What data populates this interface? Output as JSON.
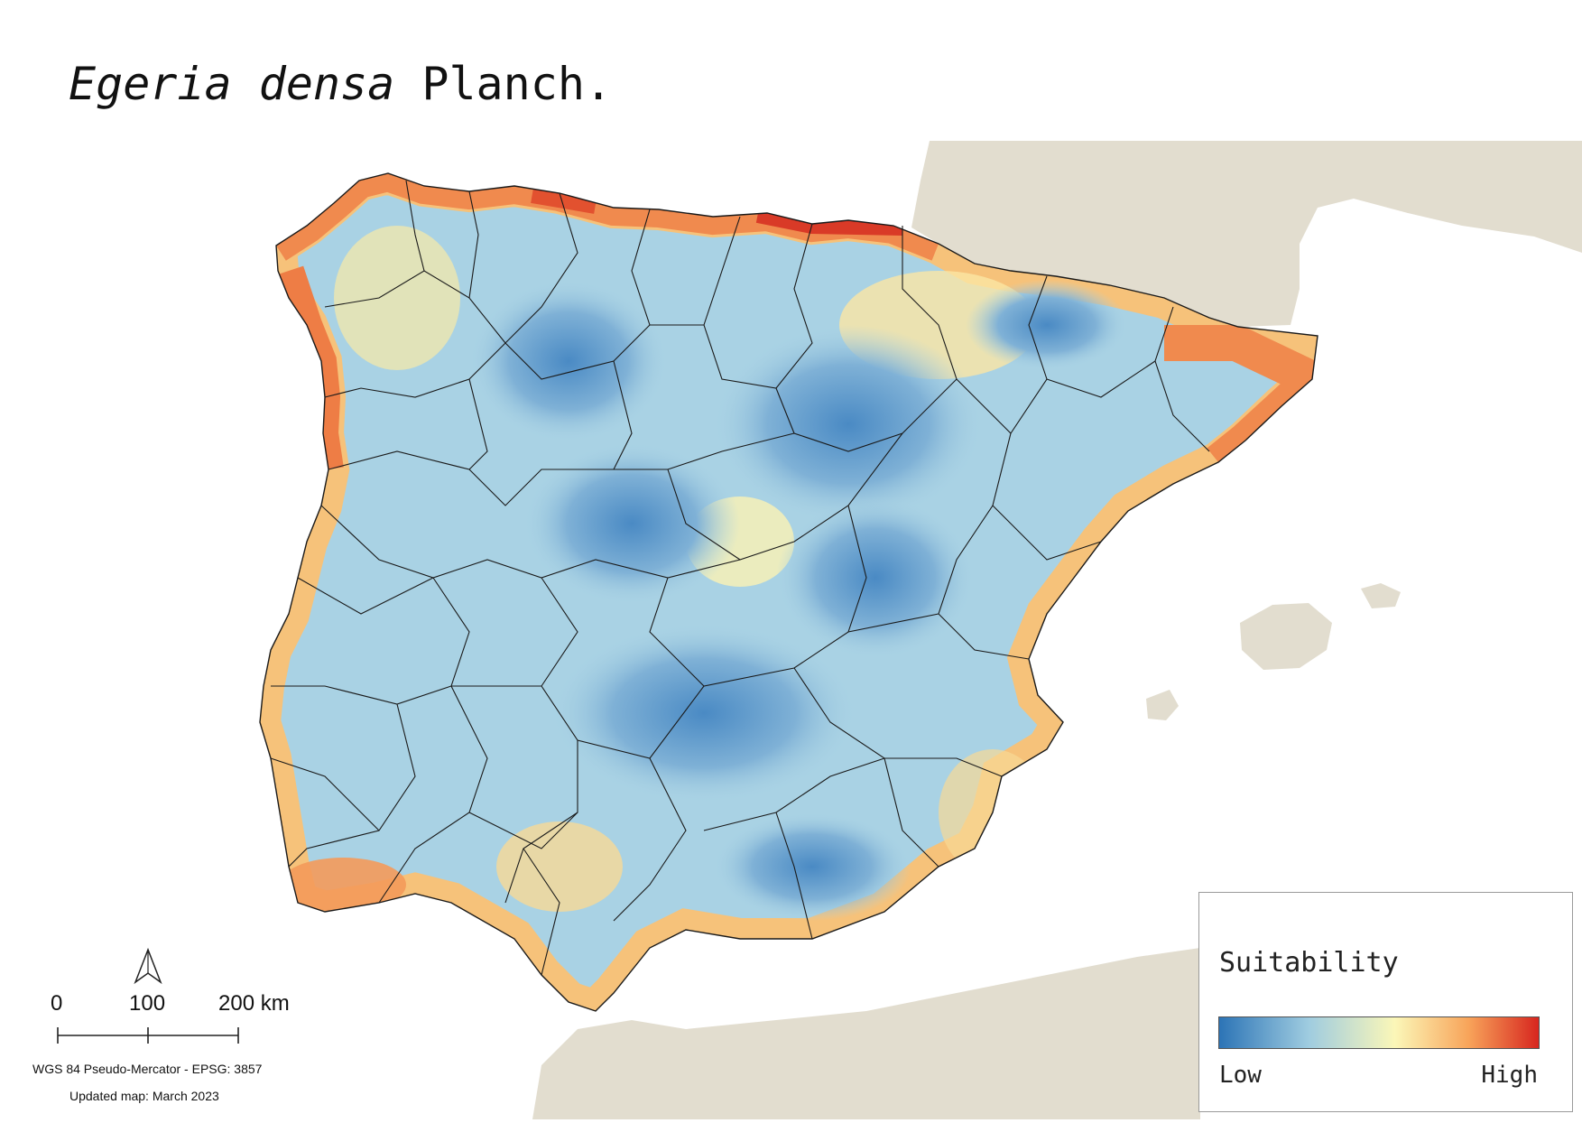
{
  "title": {
    "species_italic": "Egeria densa",
    "author": "Planch."
  },
  "legend": {
    "title": "Suitability",
    "low_label": "Low",
    "high_label": "High",
    "ramp_colors": [
      "#2c74b6",
      "#9fcce0",
      "#fbf7b8",
      "#f8a45a",
      "#d7261f"
    ]
  },
  "scale_bar": {
    "labels": [
      "0",
      "100",
      "200 km"
    ]
  },
  "north_arrow": {
    "icon": "north-arrow-icon"
  },
  "footer": {
    "crs": "WGS 84 Pseudo-Mercator  - EPSG: 3857",
    "updated": "Updated map: March 2023"
  },
  "colors": {
    "land_background": "#e2ddcf",
    "sea": "#ffffff",
    "boundary": "#1a1a1a"
  }
}
